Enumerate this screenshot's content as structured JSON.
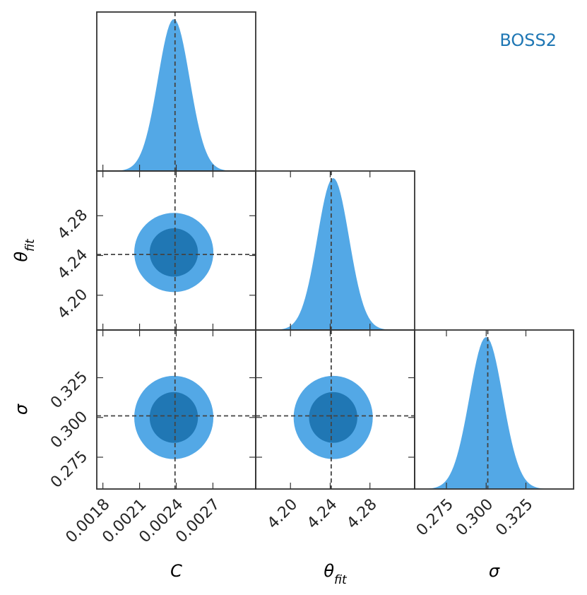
{
  "chart_data": {
    "type": "corner",
    "legend": {
      "label": "BOSS2",
      "color": "#1f77b4",
      "placement": "top-right"
    },
    "colors": {
      "fill_outer": "#53a8e6",
      "fill_inner": "#2077b4",
      "frame": "#333333",
      "truth_line": "#444444"
    },
    "parameters": [
      {
        "name": "C",
        "label_main": "C",
        "label_sub": "",
        "range": [
          0.00175,
          0.00305
        ],
        "ticks": [
          0.0018,
          0.0021,
          0.0024,
          0.0027
        ],
        "tick_labels": [
          "0.0018",
          "0.0021",
          "0.0024",
          "0.0027"
        ],
        "truth": 0.00239,
        "mean": 0.00238,
        "sigma": 0.00013
      },
      {
        "name": "theta_fit",
        "label_main": "θ",
        "label_sub": "fit",
        "range": [
          4.165,
          4.325
        ],
        "ticks": [
          4.2,
          4.24,
          4.28
        ],
        "tick_labels": [
          "4.20",
          "4.24",
          "4.28"
        ],
        "truth": 4.241,
        "mean": 4.243,
        "sigma": 0.016
      },
      {
        "name": "sigma",
        "label_main": "σ",
        "label_sub": "",
        "range": [
          0.255,
          0.355
        ],
        "ticks": [
          0.275,
          0.3,
          0.325
        ],
        "tick_labels": [
          "0.275",
          "0.300",
          "0.325"
        ],
        "truth": 0.301,
        "mean": 0.3,
        "sigma": 0.0105
      }
    ],
    "pairs": [
      {
        "x": "C",
        "y": "theta_fit",
        "correlation": 0.0
      },
      {
        "x": "C",
        "y": "sigma",
        "correlation": 0.0
      },
      {
        "x": "theta_fit",
        "y": "sigma",
        "correlation": 0.0
      }
    ],
    "contour_levels": [
      "68%",
      "95%"
    ]
  }
}
